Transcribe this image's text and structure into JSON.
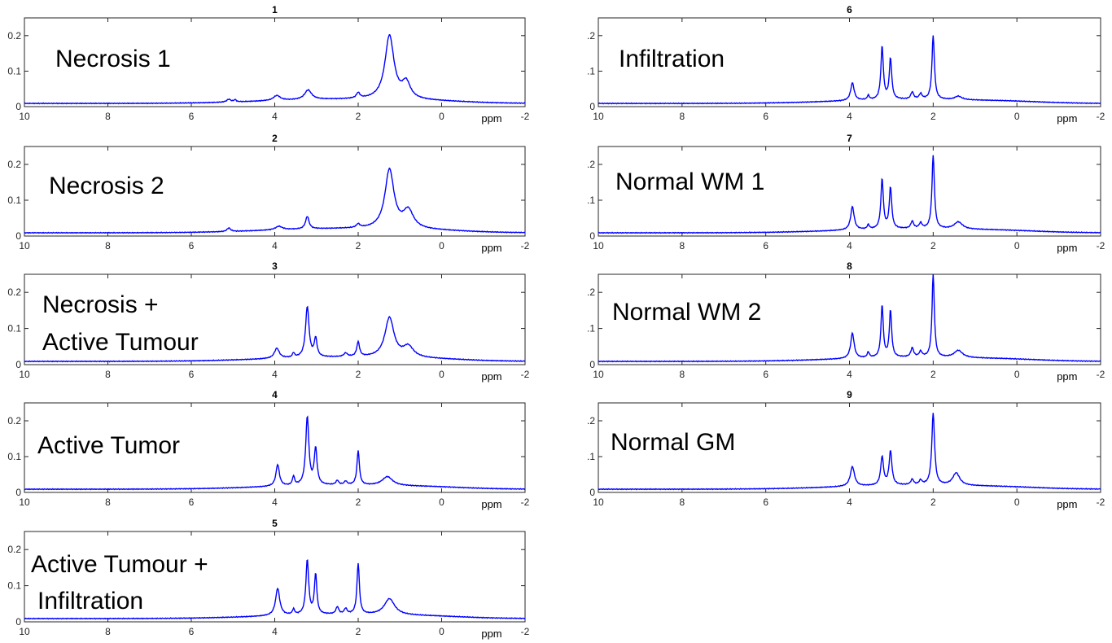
{
  "chart_data": [
    {
      "type": "line",
      "title": "1",
      "label_lines": [
        "Necrosis 1"
      ],
      "xlabel": "ppm",
      "xlim": [
        10,
        -2
      ],
      "ylim": [
        0,
        0.25
      ],
      "xticks": [
        "10",
        "8",
        "6",
        "4",
        "2",
        "0",
        "-2"
      ],
      "yticks": [
        "0",
        "0.1",
        "0.2"
      ],
      "line_color": "#0000ff",
      "peaks": [
        [
          1.25,
          0.18,
          0.13
        ],
        [
          0.85,
          0.045,
          0.12
        ],
        [
          3.2,
          0.027,
          0.1
        ],
        [
          3.95,
          0.014,
          0.1
        ],
        [
          2.0,
          0.015,
          0.05
        ],
        [
          5.1,
          0.008,
          0.06
        ],
        [
          4.95,
          0.006,
          0.03
        ]
      ]
    },
    {
      "type": "line",
      "title": "2",
      "label_lines": [
        "Necrosis 2"
      ],
      "xlabel": "ppm",
      "xlim": [
        10,
        -2
      ],
      "ylim": [
        0,
        0.25
      ],
      "xticks": [
        "10",
        "8",
        "6",
        "4",
        "2",
        "0",
        "-2"
      ],
      "yticks": [
        "0",
        "0.1",
        "0.2"
      ],
      "line_color": "#0000ff",
      "peaks": [
        [
          1.25,
          0.165,
          0.13
        ],
        [
          0.8,
          0.05,
          0.15
        ],
        [
          3.22,
          0.035,
          0.05
        ],
        [
          3.9,
          0.01,
          0.1
        ],
        [
          5.1,
          0.01,
          0.05
        ],
        [
          2.0,
          0.01,
          0.05
        ]
      ]
    },
    {
      "type": "line",
      "title": "3",
      "label_lines": [
        "Necrosis +",
        "Active Tumour"
      ],
      "xlabel": "ppm",
      "xlim": [
        10,
        -2
      ],
      "ylim": [
        0,
        0.25
      ],
      "xticks": [
        "10",
        "8",
        "6",
        "4",
        "2",
        "0",
        "-2"
      ],
      "yticks": [
        "0",
        "0.1",
        "0.2"
      ],
      "line_color": "#0000ff",
      "peaks": [
        [
          3.22,
          0.14,
          0.05
        ],
        [
          3.02,
          0.05,
          0.04
        ],
        [
          1.25,
          0.11,
          0.13
        ],
        [
          0.8,
          0.03,
          0.15
        ],
        [
          2.0,
          0.04,
          0.04
        ],
        [
          3.95,
          0.028,
          0.07
        ],
        [
          2.3,
          0.01,
          0.05
        ],
        [
          3.55,
          0.012,
          0.03
        ]
      ]
    },
    {
      "type": "line",
      "title": "4",
      "label_lines": [
        "Active Tumor"
      ],
      "xlabel": "ppm",
      "xlim": [
        10,
        -2
      ],
      "ylim": [
        0,
        0.25
      ],
      "xticks": [
        "10",
        "8",
        "6",
        "4",
        "2",
        "0",
        "-2"
      ],
      "yticks": [
        "0",
        "0.1",
        "0.2"
      ],
      "line_color": "#0000ff",
      "peaks": [
        [
          3.22,
          0.19,
          0.045
        ],
        [
          3.02,
          0.1,
          0.04
        ],
        [
          2.0,
          0.095,
          0.035
        ],
        [
          3.93,
          0.06,
          0.05
        ],
        [
          1.3,
          0.025,
          0.15
        ],
        [
          3.55,
          0.025,
          0.03
        ],
        [
          2.5,
          0.012,
          0.04
        ],
        [
          2.3,
          0.01,
          0.04
        ]
      ]
    },
    {
      "type": "line",
      "title": "5",
      "label_lines": [
        "Active Tumour +",
        "Infiltration"
      ],
      "xlabel": "ppm",
      "xlim": [
        10,
        -2
      ],
      "ylim": [
        0,
        0.25
      ],
      "xticks": [
        "10",
        "8",
        "6",
        "4",
        "2",
        "0",
        "-2"
      ],
      "yticks": [
        "0",
        "0.1",
        "0.2"
      ],
      "line_color": "#0000ff",
      "peaks": [
        [
          3.22,
          0.15,
          0.04
        ],
        [
          3.02,
          0.11,
          0.035
        ],
        [
          2.0,
          0.14,
          0.035
        ],
        [
          3.93,
          0.075,
          0.06
        ],
        [
          1.25,
          0.045,
          0.15
        ],
        [
          2.5,
          0.02,
          0.04
        ],
        [
          2.3,
          0.015,
          0.04
        ],
        [
          3.55,
          0.015,
          0.03
        ]
      ]
    },
    {
      "type": "line",
      "title": "6",
      "label_lines": [
        "Infiltration"
      ],
      "xlabel": "ppm",
      "xlim": [
        10,
        -2
      ],
      "ylim": [
        0,
        0.25
      ],
      "xticks": [
        "10",
        "8",
        "6",
        "4",
        "2",
        "0",
        "-2"
      ],
      "yticks": [
        "0",
        ".1",
        ".2"
      ],
      "line_color": "#0000ff",
      "peaks": [
        [
          2.0,
          0.18,
          0.035
        ],
        [
          3.22,
          0.15,
          0.035
        ],
        [
          3.02,
          0.115,
          0.035
        ],
        [
          3.93,
          0.05,
          0.05
        ],
        [
          2.5,
          0.02,
          0.04
        ],
        [
          2.3,
          0.015,
          0.04
        ],
        [
          3.55,
          0.012,
          0.03
        ],
        [
          1.4,
          0.01,
          0.1
        ]
      ]
    },
    {
      "type": "line",
      "title": "7",
      "label_lines": [
        "Normal WM 1"
      ],
      "xlabel": "ppm",
      "xlim": [
        10,
        -2
      ],
      "ylim": [
        0,
        0.25
      ],
      "xticks": [
        "10",
        "8",
        "6",
        "4",
        "2",
        "0",
        "-2"
      ],
      "yticks": [
        "0",
        ".1",
        ".2"
      ],
      "line_color": "#0000ff",
      "peaks": [
        [
          2.0,
          0.205,
          0.035
        ],
        [
          3.22,
          0.14,
          0.035
        ],
        [
          3.02,
          0.115,
          0.035
        ],
        [
          3.93,
          0.065,
          0.05
        ],
        [
          2.5,
          0.02,
          0.04
        ],
        [
          2.3,
          0.015,
          0.04
        ],
        [
          3.55,
          0.012,
          0.03
        ],
        [
          1.4,
          0.02,
          0.12
        ]
      ]
    },
    {
      "type": "line",
      "title": "8",
      "label_lines": [
        "Normal WM 2"
      ],
      "xlabel": "ppm",
      "xlim": [
        10,
        -2
      ],
      "ylim": [
        0,
        0.25
      ],
      "xticks": [
        "10",
        "8",
        "6",
        "4",
        "2",
        "0",
        "-2"
      ],
      "yticks": [
        "0",
        ".1",
        ".2"
      ],
      "line_color": "#0000ff",
      "peaks": [
        [
          2.0,
          0.23,
          0.033
        ],
        [
          3.22,
          0.145,
          0.033
        ],
        [
          3.02,
          0.13,
          0.033
        ],
        [
          3.93,
          0.07,
          0.05
        ],
        [
          2.5,
          0.025,
          0.04
        ],
        [
          2.3,
          0.015,
          0.04
        ],
        [
          3.55,
          0.015,
          0.03
        ],
        [
          1.4,
          0.02,
          0.12
        ]
      ]
    },
    {
      "type": "line",
      "title": "9",
      "label_lines": [
        "Normal GM"
      ],
      "xlabel": "ppm",
      "xlim": [
        10,
        -2
      ],
      "ylim": [
        0,
        0.25
      ],
      "xticks": [
        "10",
        "8",
        "6",
        "4",
        "2",
        "0",
        "-2"
      ],
      "yticks": [
        "0",
        ".1",
        ".2"
      ],
      "line_color": "#0000ff",
      "peaks": [
        [
          2.0,
          0.2,
          0.04
        ],
        [
          3.22,
          0.08,
          0.04
        ],
        [
          3.02,
          0.095,
          0.04
        ],
        [
          3.93,
          0.055,
          0.06
        ],
        [
          1.45,
          0.035,
          0.1
        ],
        [
          2.5,
          0.015,
          0.04
        ],
        [
          2.3,
          0.012,
          0.04
        ]
      ]
    }
  ]
}
